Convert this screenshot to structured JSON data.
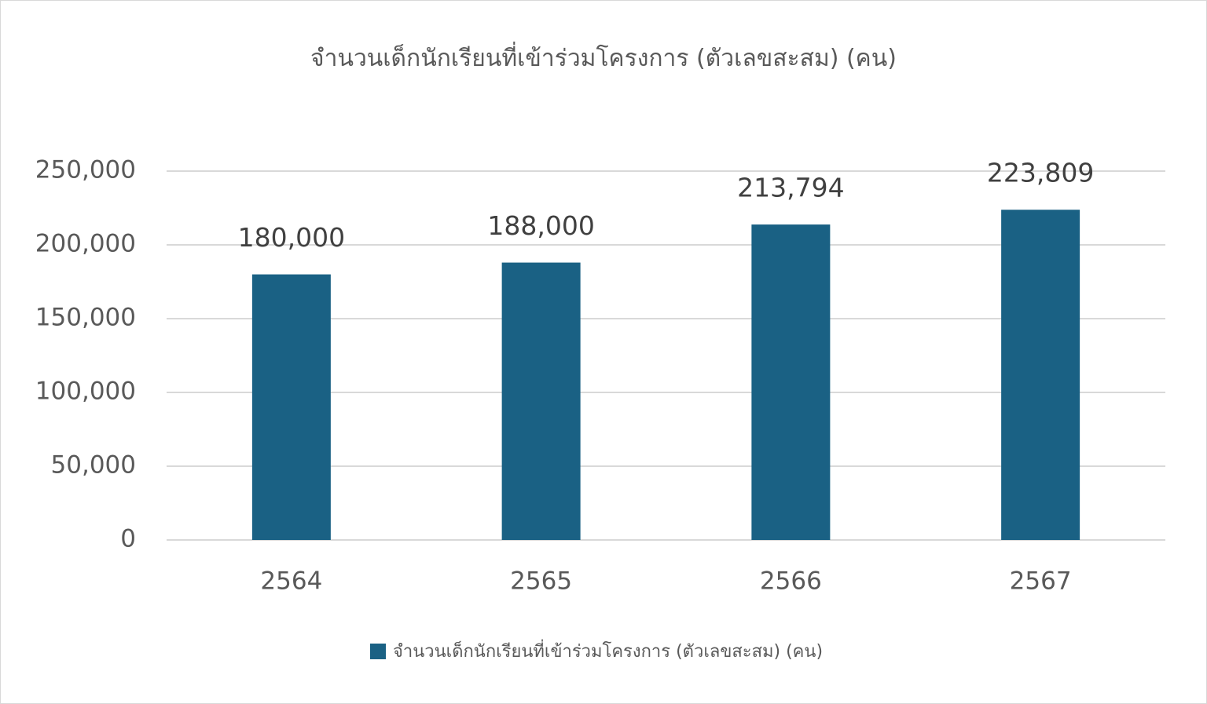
{
  "chart_data": {
    "type": "bar",
    "title": "จำนวนเด็กนักเรียนที่เข้าร่วมโครงการ (ตัวเลขสะสม) (คน)",
    "categories": [
      "2564",
      "2565",
      "2566",
      "2567"
    ],
    "series": [
      {
        "name": "จำนวนเด็กนักเรียนที่เข้าร่วมโครงการ (ตัวเลขสะสม) (คน)",
        "color": "#1a6184",
        "values": [
          180000,
          188000,
          213794,
          223809
        ],
        "value_labels": [
          "180,000",
          "188,000",
          "213,794",
          "223,809"
        ]
      }
    ],
    "ylim": [
      0,
      250000
    ],
    "yticks": [
      0,
      {
        "value": 50000,
        "label": "50,000"
      },
      {
        "value": 100000,
        "label": "100,000"
      },
      {
        "value": 150000,
        "label": "150,000"
      },
      {
        "value": 200000,
        "label": "200,000"
      },
      {
        "value": 250000,
        "label": "250,000"
      }
    ],
    "grid": true,
    "legend": "bottom"
  }
}
